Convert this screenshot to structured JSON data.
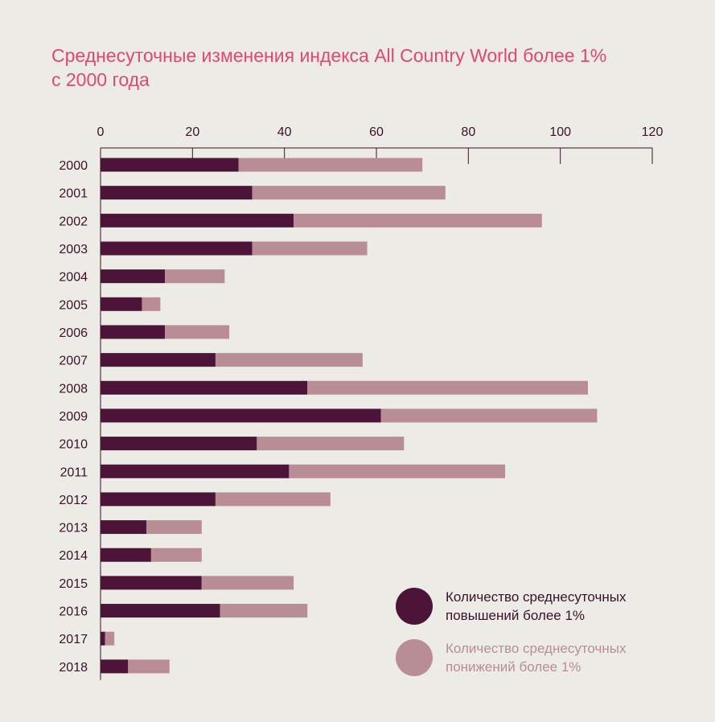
{
  "title_line1": "Среднесуточные изменения индекса All Country World более 1%",
  "title_line2": "с 2000 года",
  "colors": {
    "up": "#4b1438",
    "down": "#b98d95",
    "text": "#3a1228",
    "title": "#e0486f"
  },
  "chart_data": {
    "type": "bar",
    "orientation": "horizontal",
    "stacked": true,
    "categories": [
      "2000",
      "2001",
      "2002",
      "2003",
      "2004",
      "2005",
      "2006",
      "2007",
      "2008",
      "2009",
      "2010",
      "2011",
      "2012",
      "2013",
      "2014",
      "2015",
      "2016",
      "2017",
      "2018"
    ],
    "series": [
      {
        "name": "Количество среднесуточных повышений более 1%",
        "values": [
          30,
          33,
          42,
          33,
          14,
          9,
          14,
          25,
          45,
          61,
          34,
          41,
          25,
          10,
          11,
          22,
          26,
          1,
          6
        ]
      },
      {
        "name": "Количество среднесуточных понижений более 1%",
        "values": [
          40,
          42,
          54,
          25,
          13,
          4,
          14,
          32,
          61,
          47,
          32,
          47,
          25,
          12,
          11,
          20,
          19,
          2,
          9
        ]
      }
    ],
    "xlim": [
      0,
      120
    ],
    "x_ticks": [
      0,
      20,
      40,
      60,
      80,
      100,
      120
    ],
    "axis_position": "top",
    "legend_position": "bottom-right",
    "grid": false
  },
  "legend": {
    "up_line1": "Количество среднесуточных",
    "up_line2": "повышений более 1%",
    "down_line1": "Количество среднесуточных",
    "down_line2": "понижений более 1%"
  }
}
